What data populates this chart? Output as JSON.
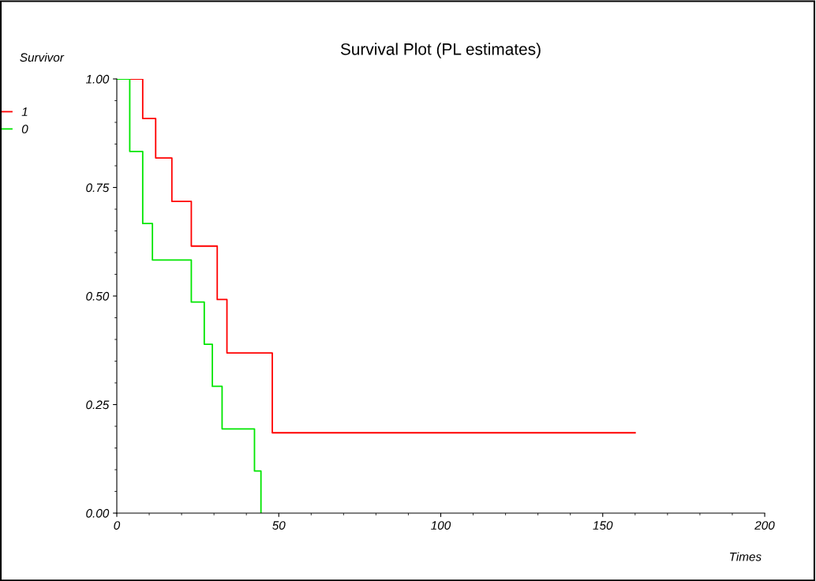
{
  "chart_data": {
    "type": "step",
    "title": "Survival Plot (PL estimates)",
    "xlabel": "Times",
    "ylabel": "Survivor",
    "series": [
      {
        "name": "1",
        "color": "#ff0000",
        "x": [
          0,
          8,
          12,
          17,
          23,
          31,
          34,
          48,
          160
        ],
        "values": [
          1.0,
          0.909,
          0.818,
          0.718,
          0.615,
          0.492,
          0.369,
          0.185,
          0.185
        ]
      },
      {
        "name": "0",
        "color": "#00e600",
        "x": [
          0,
          4,
          8,
          11,
          23,
          27,
          29.5,
          32.5,
          42.5,
          44.5
        ],
        "values": [
          1.0,
          0.833,
          0.667,
          0.583,
          0.486,
          0.389,
          0.292,
          0.194,
          0.097,
          0.0
        ]
      }
    ],
    "xlim": [
      0,
      200
    ],
    "xticks": [
      0,
      50,
      100,
      150,
      200
    ],
    "ylim": [
      0,
      1
    ],
    "yticks": [
      {
        "value": 0,
        "label": "0.00"
      },
      {
        "value": 0.25,
        "label": "0.25"
      },
      {
        "value": 0.5,
        "label": "0.50"
      },
      {
        "value": 0.75,
        "label": "0.75"
      },
      {
        "value": 1,
        "label": "1.00"
      }
    ],
    "grid": false,
    "legend": "top left"
  }
}
